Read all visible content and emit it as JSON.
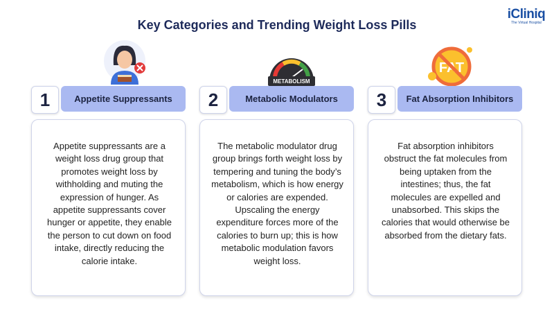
{
  "header": {
    "title": "Key Categories and Trending Weight Loss Pills",
    "logo": {
      "name": "iCliniq",
      "tagline": "The Virtual Hospital"
    }
  },
  "cards": [
    {
      "number": 1,
      "title": "Appetite Suppressants",
      "body": "Appetite suppressants are a weight loss drug group that promotes weight loss by withholding and muting the expression of hunger. As appetite suppressants cover hunger or appetite, they enable the person to cut down on food intake, directly reducing the calorie intake."
    },
    {
      "number": 2,
      "title": "Metabolic Modulators",
      "icon_text": "METABOLISM",
      "body": "The metabolic modulator drug group brings forth weight loss by tempering and tuning the body’s metabolism, which is how energy or calories are expended. Upscaling the energy expenditure forces more of the calories to burn up; this is how metabolic modulation favors weight loss."
    },
    {
      "number": 3,
      "title": "Fat Absorption Inhibitors",
      "icon_text": "FAT",
      "body": "Fat absorption inhibitors obstruct the fat molecules from being uptaken from the intestines; thus, the fat molecules are expelled and unabsorbed. This skips the calories that would otherwise be absorbed from the dietary fats."
    }
  ]
}
